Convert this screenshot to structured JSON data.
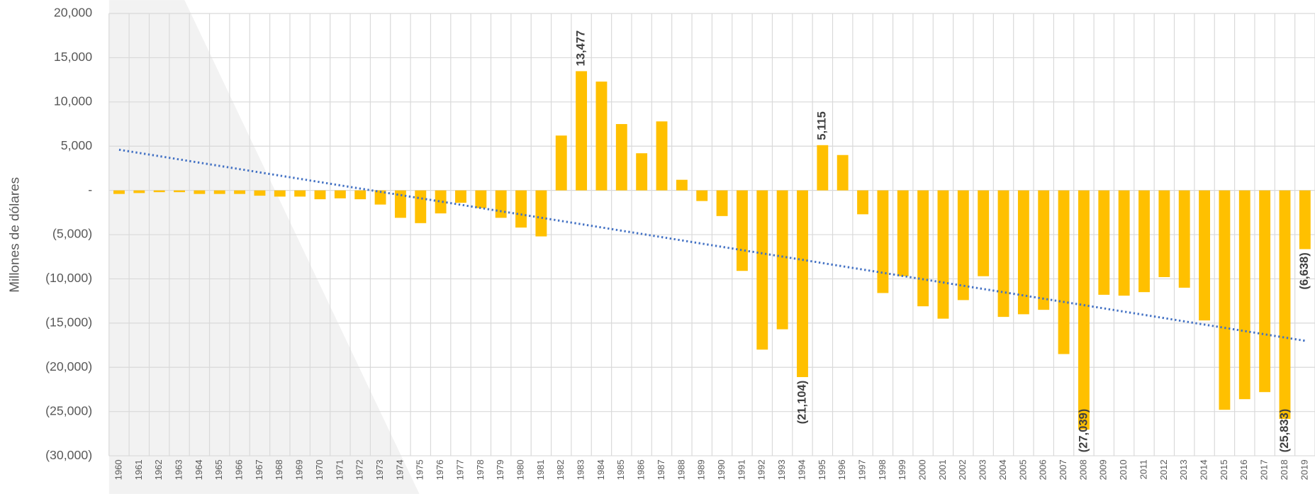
{
  "chart_data": {
    "type": "bar",
    "y_label": "Millones de dólares",
    "categories": [
      "1960",
      "1961",
      "1962",
      "1963",
      "1964",
      "1965",
      "1966",
      "1967",
      "1968",
      "1969",
      "1970",
      "1971",
      "1972",
      "1973",
      "1974",
      "1975",
      "1976",
      "1977",
      "1978",
      "1979",
      "1980",
      "1981",
      "1982",
      "1983",
      "1984",
      "1985",
      "1986",
      "1987",
      "1988",
      "1989",
      "1990",
      "1991",
      "1992",
      "1993",
      "1994",
      "1995",
      "1996",
      "1997",
      "1998",
      "1999",
      "2000",
      "2001",
      "2002",
      "2003",
      "2004",
      "2005",
      "2006",
      "2007",
      "2008",
      "2009",
      "2010",
      "2011",
      "2012",
      "2013",
      "2014",
      "2015",
      "2016",
      "2017",
      "2018",
      "2019"
    ],
    "values": [
      -400,
      -300,
      -200,
      -200,
      -400,
      -400,
      -400,
      -600,
      -700,
      -700,
      -1000,
      -900,
      -1000,
      -1600,
      -3100,
      -3700,
      -2600,
      -1400,
      -2000,
      -3100,
      -4200,
      -5200,
      6200,
      13477,
      12300,
      7500,
      4200,
      7800,
      1200,
      -1200,
      -2900,
      -9100,
      -18000,
      -15700,
      -21104,
      5115,
      4000,
      -2700,
      -11600,
      -9700,
      -13100,
      -14500,
      -12400,
      -9700,
      -14300,
      -14000,
      -13500,
      -18500,
      -27039,
      -11800,
      -11900,
      -11500,
      -9800,
      -11000,
      -14700,
      -24800,
      -23600,
      -22800,
      -25833,
      -6638
    ],
    "value_labels": [
      null,
      null,
      null,
      null,
      null,
      null,
      null,
      null,
      null,
      null,
      null,
      null,
      null,
      null,
      null,
      null,
      null,
      null,
      null,
      null,
      null,
      null,
      null,
      "13,477",
      null,
      null,
      null,
      null,
      null,
      null,
      null,
      null,
      null,
      null,
      "(21,104)",
      "5,115",
      null,
      null,
      null,
      null,
      null,
      null,
      null,
      null,
      null,
      null,
      null,
      null,
      "(27,039)",
      null,
      null,
      null,
      null,
      null,
      null,
      null,
      null,
      null,
      "(25,833)",
      "(6,638)"
    ],
    "color": "#ffc000",
    "trendline": {
      "color": "#4472c4",
      "values": [
        4600,
        -17000
      ]
    },
    "ylim": [
      -30000,
      20000
    ],
    "yticks": [
      {
        "value": -30000,
        "label": "(30,000)"
      },
      {
        "value": -25000,
        "label": "(25,000)"
      },
      {
        "value": -20000,
        "label": "(20,000)"
      },
      {
        "value": -15000,
        "label": "(15,000)"
      },
      {
        "value": -10000,
        "label": "(10,000)"
      },
      {
        "value": -5000,
        "label": "(5,000)"
      },
      {
        "value": 0,
        "label": "-"
      },
      {
        "value": 5000,
        "label": "5,000"
      },
      {
        "value": 10000,
        "label": "10,000"
      },
      {
        "value": 15000,
        "label": "15,000"
      },
      {
        "value": 20000,
        "label": "20,000"
      }
    ],
    "grid": true
  }
}
